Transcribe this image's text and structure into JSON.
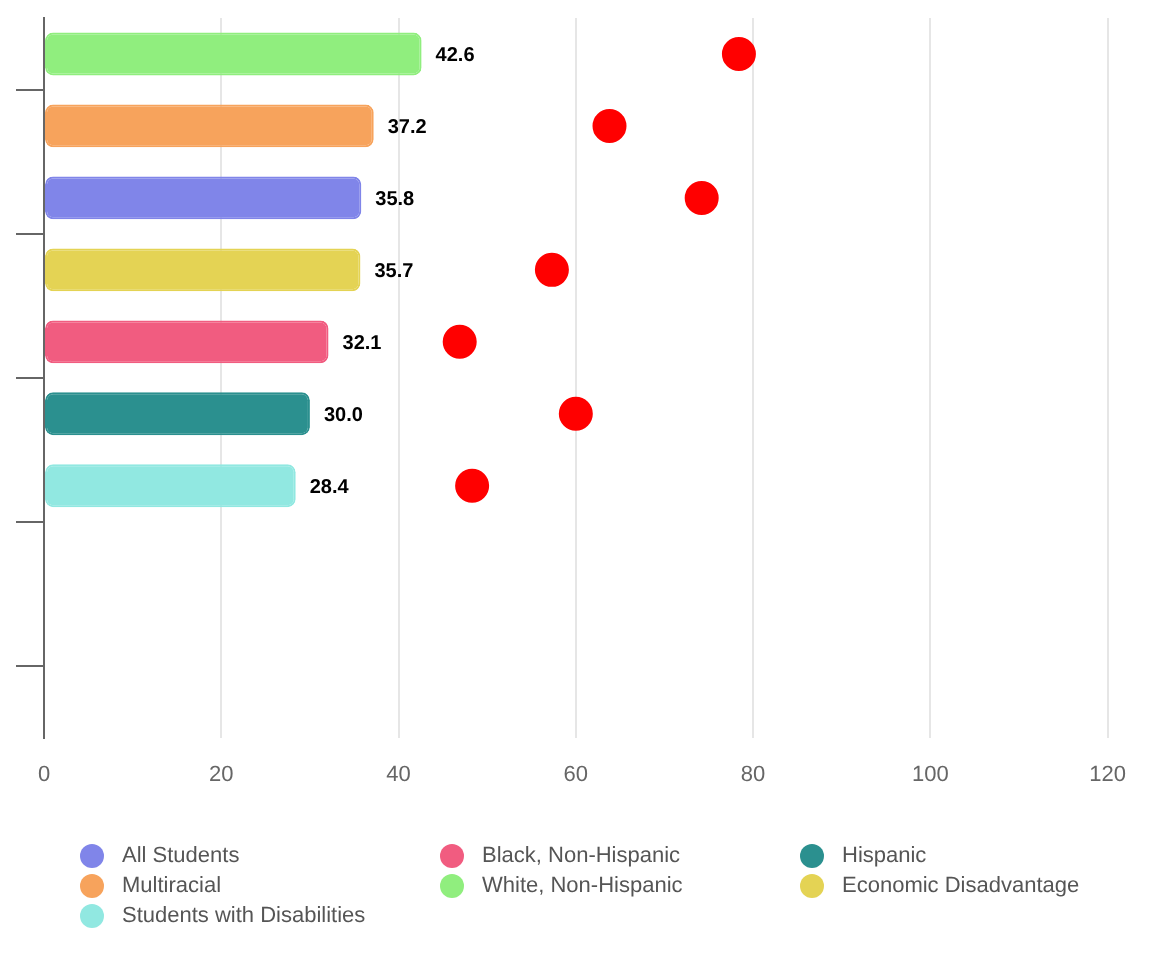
{
  "chart_data": {
    "type": "bar",
    "orientation": "horizontal",
    "categories": [
      null,
      null,
      null,
      null,
      null,
      null,
      null,
      null,
      null,
      null
    ],
    "xlim": [
      0,
      120
    ],
    "xticks": [
      0,
      20,
      40,
      60,
      80,
      100,
      120
    ],
    "grid": "x",
    "legend": "bottom",
    "tick_labels": "x",
    "series": [
      {
        "name": "All Students",
        "color": "#8085e9",
        "values": [
          null,
          null,
          35.8,
          null,
          null,
          null,
          null,
          null,
          null,
          null
        ],
        "value_labels": [
          null,
          null,
          "35.8",
          null,
          null,
          null,
          null,
          null,
          null,
          null
        ]
      },
      {
        "name": "Black, Non-Hispanic",
        "color": "#f15c80",
        "values": [
          null,
          null,
          null,
          null,
          32.1,
          null,
          null,
          null,
          null,
          null
        ],
        "value_labels": [
          null,
          null,
          null,
          null,
          "32.1",
          null,
          null,
          null,
          null,
          null
        ]
      },
      {
        "name": "Hispanic",
        "color": "#2b908f",
        "values": [
          null,
          null,
          null,
          null,
          null,
          30.0,
          null,
          null,
          null,
          null
        ],
        "value_labels": [
          null,
          null,
          null,
          null,
          null,
          "30.0",
          null,
          null,
          null,
          null
        ]
      },
      {
        "name": "Multiracial",
        "color": "#f7a35c",
        "values": [
          null,
          37.2,
          null,
          null,
          null,
          null,
          null,
          null,
          null,
          null
        ],
        "value_labels": [
          null,
          "37.2",
          null,
          null,
          null,
          null,
          null,
          null,
          null,
          null
        ]
      },
      {
        "name": "White, Non-Hispanic",
        "color": "#90ee7e",
        "values": [
          42.6,
          null,
          null,
          null,
          null,
          null,
          null,
          null,
          null,
          null
        ],
        "value_labels": [
          "42.6",
          null,
          null,
          null,
          null,
          null,
          null,
          null,
          null,
          null
        ]
      },
      {
        "name": "Economic Disadvantage",
        "color": "#e4d354",
        "values": [
          null,
          null,
          null,
          35.7,
          null,
          null,
          null,
          null,
          null,
          null
        ],
        "value_labels": [
          null,
          null,
          null,
          "35.7",
          null,
          null,
          null,
          null,
          null,
          null
        ]
      },
      {
        "name": "Students with Disabilities",
        "color": "#91e8e1",
        "values": [
          null,
          null,
          null,
          null,
          null,
          null,
          28.4,
          null,
          null,
          null
        ],
        "value_labels": [
          null,
          null,
          null,
          null,
          null,
          null,
          "28.4",
          null,
          null,
          null
        ]
      },
      {
        "type": "scatter",
        "color": "#ff0000",
        "marker": "circle",
        "values": [
          78.4,
          63.8,
          74.2,
          57.3,
          46.9,
          60.0,
          48.3,
          null,
          null,
          null
        ]
      }
    ]
  }
}
